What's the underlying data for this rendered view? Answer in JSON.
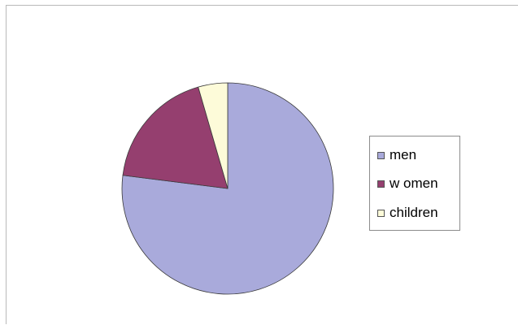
{
  "chart_data": {
    "type": "pie",
    "categories": [
      "men",
      "w omen",
      "children"
    ],
    "values": [
      77,
      18.5,
      4.5
    ],
    "colors": [
      "#a9aadb",
      "#953f6f",
      "#fdfbd9"
    ],
    "title": "",
    "legend_placement": "right",
    "start_angle": "top, clockwise"
  }
}
